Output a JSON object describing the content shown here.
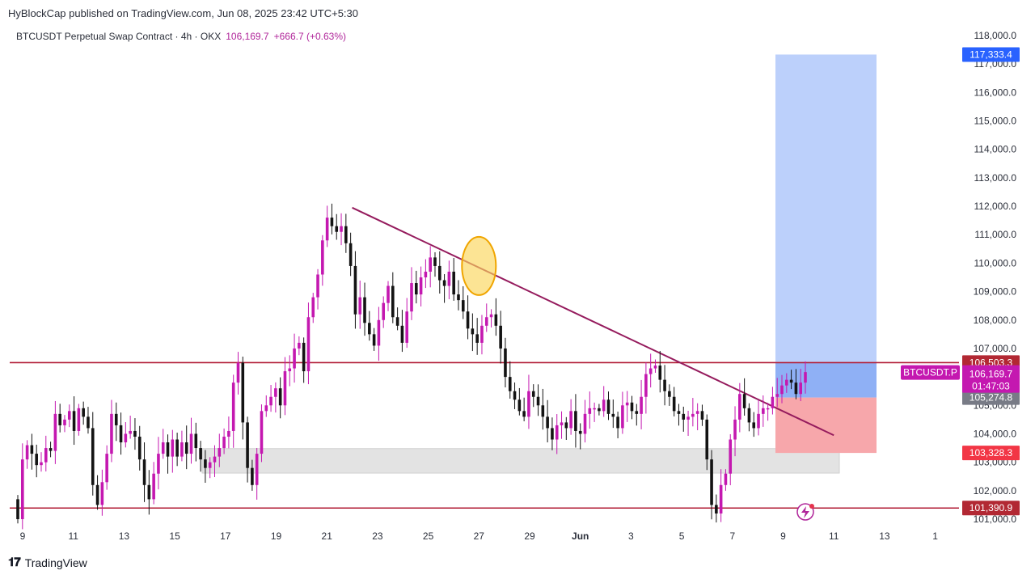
{
  "header": {
    "published": "HyBlockCap published on TradingView.com, Jun 08, 2025 23:42 UTC+5:30",
    "symbol": "BTCUSDT Perpetual Swap Contract · 4h · OKX",
    "last": "106,169.7",
    "change": "+666.7 (+0.63%)"
  },
  "footer": {
    "logo": "TradingView"
  },
  "chart_data": {
    "type": "candlestick",
    "y_ticks": [
      "101,000.0",
      "102,000.0",
      "103,000.0",
      "104,000.0",
      "105,000.0",
      "106,000.0",
      "107,000.0",
      "108,000.0",
      "109,000.0",
      "110,000.0",
      "111,000.0",
      "112,000.0",
      "113,000.0",
      "114,000.0",
      "115,000.0",
      "116,000.0",
      "117,000.0",
      "118,000.0"
    ],
    "x_ticks": [
      "9",
      "11",
      "13",
      "15",
      "17",
      "19",
      "21",
      "23",
      "25",
      "27",
      "29",
      "Jun",
      "3",
      "5",
      "7",
      "9",
      "11",
      "13",
      "1"
    ],
    "price_labels": {
      "target": "117,333.4",
      "resistance": "106,503.3",
      "symbol_tag": "BTCUSDT.P",
      "current": "106,169.7",
      "countdown": "01:47:03",
      "entry": "105,274.8",
      "stop": "103,328.3",
      "support": "101,390.9"
    },
    "levels": {
      "resistance": 106503.3,
      "support": 101390.9
    },
    "position": {
      "target": 117333.4,
      "entry": 105274.8,
      "stop": 103328.3
    },
    "demand_zone": [
      102620,
      103480
    ],
    "trendline": [
      {
        "x": "May 22",
        "y": 111950
      },
      {
        "x": "Jun 10",
        "y": 103950
      }
    ],
    "highlight_circle": {
      "x": "May 27",
      "y": 109900
    },
    "closes": [
      101000,
      103100,
      103600,
      103300,
      102900,
      103000,
      103500,
      103400,
      104700,
      104300,
      104500,
      104800,
      104100,
      104900,
      104600,
      104200,
      102200,
      101500,
      102300,
      103300,
      104700,
      104300,
      103700,
      104000,
      104100,
      103900,
      103100,
      102200,
      101700,
      102600,
      103300,
      103700,
      103200,
      103800,
      103200,
      103700,
      103300,
      104000,
      103500,
      103100,
      102800,
      103000,
      103200,
      103500,
      103900,
      104100,
      105800,
      106500,
      104400,
      102800,
      102200,
      103300,
      104800,
      105000,
      105300,
      105600,
      105000,
      106200,
      106300,
      107000,
      107200,
      106200,
      108100,
      108800,
      109600,
      110800,
      111600,
      111300,
      111100,
      111300,
      110700,
      109900,
      108200,
      108800,
      107900,
      107500,
      107100,
      108000,
      108600,
      109200,
      108100,
      107800,
      107200,
      108300,
      109300,
      108900,
      109500,
      109700,
      110200,
      109900,
      109400,
      109200,
      109700,
      108900,
      108700,
      108300,
      107700,
      107500,
      107200,
      107800,
      108100,
      108200,
      107800,
      107000,
      106000,
      105500,
      105200,
      104800,
      104600,
      105500,
      105300,
      105000,
      104600,
      104200,
      103800,
      104300,
      104400,
      104200,
      104800,
      104100,
      104000,
      104700,
      104900,
      104900,
      104800,
      105200,
      104700,
      104600,
      104200,
      105000,
      105100,
      104800,
      104700,
      105300,
      106100,
      106300,
      106400,
      105900,
      105500,
      105300,
      104800,
      104700,
      104500,
      104600,
      104700,
      104800,
      104500,
      103100,
      101500,
      101200,
      102200,
      102600,
      103800,
      104500,
      105400,
      104900,
      104400,
      104200,
      104700,
      104900,
      104900,
      105300,
      105400,
      105700,
      105900,
      105800,
      105400,
      105800,
      106169.7
    ],
    "ylim": [
      100900,
      118350
    ]
  }
}
